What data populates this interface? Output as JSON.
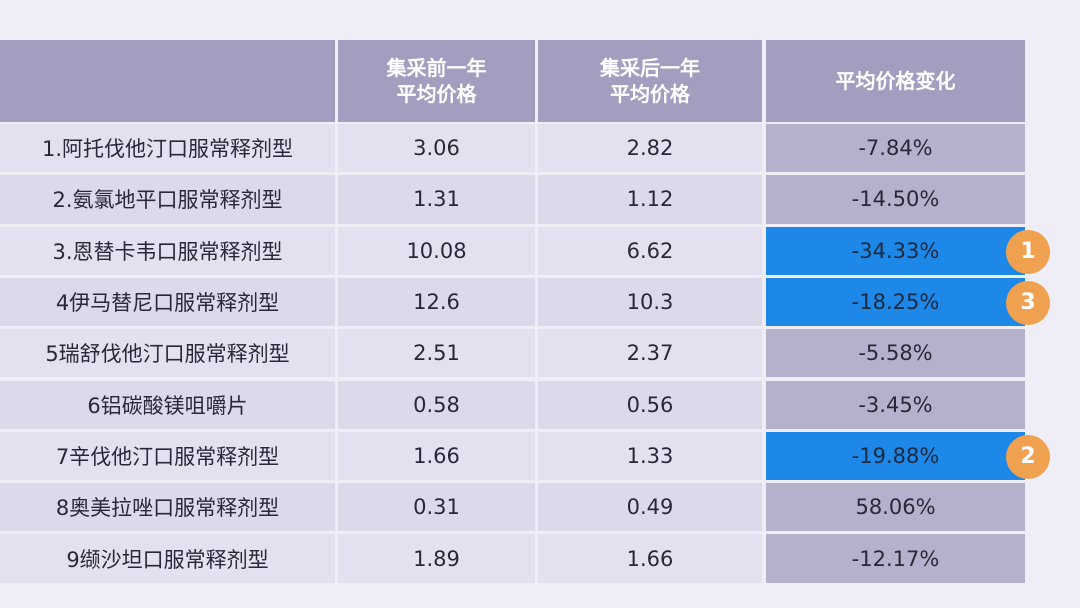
{
  "chart_data": {
    "type": "table",
    "columns": [
      "",
      "集采前一年平均价格",
      "集采后一年平均价格",
      "平均价格变化"
    ],
    "header_lines": [
      [
        ""
      ],
      [
        "集采前一年",
        "平均价格"
      ],
      [
        "集采后一年",
        "平均价格"
      ],
      [
        "平均价格变化"
      ]
    ],
    "rows": [
      [
        "1.阿托伐他汀口服常释剂型",
        "3.06",
        "2.82",
        "-7.84%"
      ],
      [
        "2.氨氯地平口服常释剂型",
        "1.31",
        "1.12",
        "-14.50%"
      ],
      [
        "3.恩替卡韦口服常释剂型",
        "10.08",
        "6.62",
        "-34.33%"
      ],
      [
        "4伊马替尼口服常释剂型",
        "12.6",
        "10.3",
        "-18.25%"
      ],
      [
        "5瑞舒伐他汀口服常释剂型",
        "2.51",
        "2.37",
        "-5.58%"
      ],
      [
        "6铝碳酸镁咀嚼片",
        "0.58",
        "0.56",
        "-3.45%"
      ],
      [
        "7辛伐他汀口服常释剂型",
        "1.66",
        "1.33",
        "-19.88%"
      ],
      [
        "8奥美拉唑口服常释剂型",
        "0.31",
        "0.49",
        "58.06%"
      ],
      [
        "9缬沙坦口服常释剂型",
        "1.89",
        "1.66",
        "-12.17%"
      ]
    ],
    "highlighted_rows": [
      2,
      3,
      6
    ],
    "badges": {
      "2": "1",
      "3": "3",
      "6": "2"
    },
    "colors": {
      "header": "#a29ebf",
      "highlight": "#1e88e8",
      "badge": "#f0a14f",
      "change_column": "#b5b1cc"
    }
  }
}
